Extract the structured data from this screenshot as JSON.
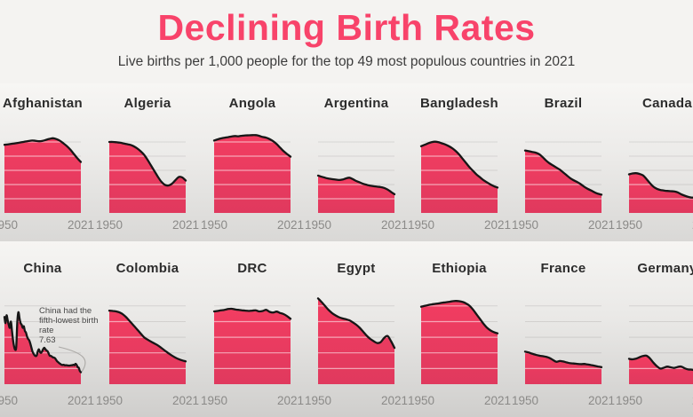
{
  "header": {
    "title": "Declining Birth Rates",
    "subtitle": "Live births per 1,000 people for the top 49 most populous countries in 2021"
  },
  "axis": {
    "start_label": "1950",
    "end_label": "2021"
  },
  "annotation": {
    "lines": [
      "China had the",
      "fifth-lowest birth",
      "rate"
    ],
    "value": "7.63",
    "target_country": "China"
  },
  "colors": {
    "title_pink": "#f8436a",
    "area_fill_top": "#f23d61",
    "area_fill_bottom": "#e0395e",
    "line": "#161616",
    "grid_over_area": "rgba(255,255,255,0.55)",
    "grid_background": "rgba(110,108,105,0.18)",
    "country_label": "#2c2c2c",
    "axis_label": "#8b8a88",
    "subtitle_text": "#3c3c3c"
  },
  "chart_data": {
    "type": "area",
    "title": "Declining Birth Rates",
    "unit": "live births per 1,000 people",
    "x_range": [
      1950,
      2021
    ],
    "ylim": [
      0,
      55
    ],
    "gridline_values": [
      10,
      20,
      30,
      40,
      50
    ],
    "grid": true,
    "legend_position": "none",
    "series": [
      {
        "name": "Afghanistan",
        "values": [
          48,
          48.3,
          48.7,
          49,
          49.4,
          49.8,
          50.3,
          50.7,
          51,
          50.8,
          50.5,
          50.8,
          51.5,
          52.2,
          52.6,
          52,
          50.8,
          49,
          47,
          44.5,
          41.5,
          38.5,
          35.9
        ]
      },
      {
        "name": "Algeria",
        "values": [
          50,
          50,
          49.8,
          49.5,
          49,
          48.5,
          48,
          47,
          45.5,
          43.5,
          41,
          37.5,
          33.5,
          29.5,
          25.5,
          22,
          19.8,
          19.3,
          20.5,
          23,
          25.3,
          25,
          22.8
        ]
      },
      {
        "name": "Angola",
        "values": [
          51,
          51.8,
          52.5,
          53,
          53.4,
          53.8,
          54.2,
          54,
          54.4,
          54.6,
          54.7,
          54.8,
          54.8,
          54.3,
          53.5,
          53,
          52,
          50.5,
          48.5,
          46,
          43.5,
          41.5,
          39.6
        ]
      },
      {
        "name": "Argentina",
        "values": [
          26.3,
          25.5,
          24.8,
          24.2,
          23.8,
          23.5,
          23.2,
          23.5,
          24.3,
          24.8,
          23.8,
          22.5,
          21.5,
          20.5,
          19.8,
          19.2,
          18.8,
          18.5,
          18.2,
          17.6,
          16.5,
          14.8,
          13.2
        ]
      },
      {
        "name": "Bangladesh",
        "values": [
          47,
          48,
          49,
          49.8,
          50.2,
          49.8,
          49,
          48.2,
          47,
          45.5,
          43.5,
          41,
          38,
          35,
          32,
          29.5,
          27,
          25,
          23,
          21.5,
          20,
          18.8,
          17.9
        ]
      },
      {
        "name": "Brazil",
        "values": [
          44,
          43.5,
          43,
          42.5,
          41.5,
          39.5,
          37,
          35,
          33.5,
          32,
          30.5,
          28.5,
          26.5,
          24.5,
          23,
          21.8,
          20.3,
          18.5,
          17,
          15.8,
          14.5,
          13.5,
          12.9
        ]
      },
      {
        "name": "Canada",
        "values": [
          27.2,
          27.8,
          28,
          27.5,
          26.5,
          24,
          21,
          18.5,
          17,
          16.2,
          15.8,
          15.5,
          15.3,
          15.2,
          14.5,
          13.2,
          12.2,
          11.3,
          10.8,
          10.9,
          10.6,
          10.1,
          9.8
        ]
      },
      {
        "name": "China",
        "values": [
          43,
          39,
          44,
          41,
          38,
          36,
          40,
          34,
          28,
          24,
          22,
          24,
          40,
          46,
          42,
          39,
          38,
          36,
          37,
          34,
          33,
          30.5,
          29,
          28,
          26,
          23.5,
          21,
          19.5,
          18.5,
          18,
          18.3,
          20.9,
          22.3,
          20.5,
          20,
          21,
          22.4,
          23.3,
          22.4,
          21.6,
          21.1,
          19.7,
          18.2,
          18.1,
          17.7,
          17.1,
          17,
          16.6,
          15.6,
          14.6,
          14,
          13.4,
          12.9,
          12.4,
          12.3,
          12.4,
          12.1,
          12.1,
          12.1,
          11.9,
          11.9,
          11.9,
          12.1,
          12.1,
          12.4,
          12.1,
          13,
          12.4,
          10.9,
          10.5,
          8.5,
          7.63
        ]
      },
      {
        "name": "Colombia",
        "values": [
          47,
          46.8,
          46.5,
          45.8,
          44.5,
          42.5,
          40,
          37.5,
          35,
          32.5,
          30,
          28.5,
          27.2,
          26,
          24.8,
          23.2,
          21.5,
          19.8,
          18.3,
          17,
          16,
          15.2,
          14.6
        ]
      },
      {
        "name": "DRC",
        "values": [
          46.5,
          46.8,
          47.2,
          47.5,
          48,
          48.2,
          47.8,
          47.5,
          47.2,
          47,
          46.8,
          47,
          47.2,
          46.5,
          46.8,
          47.5,
          46.2,
          45.8,
          46.4,
          45.5,
          44.8,
          43.5,
          41.8
        ]
      },
      {
        "name": "Egypt",
        "values": [
          54.8,
          52.5,
          50,
          47.5,
          45.5,
          44,
          42.8,
          42,
          41.5,
          40.8,
          39.5,
          38,
          36,
          33.5,
          31,
          29,
          27.5,
          26.3,
          26.8,
          29.5,
          30.8,
          27.5,
          23.2
        ]
      },
      {
        "name": "Ethiopia",
        "values": [
          49.5,
          50,
          50.5,
          51,
          51.3,
          51.6,
          52,
          52.3,
          52.6,
          53,
          53.2,
          53,
          52.5,
          51.5,
          50,
          47.5,
          44.5,
          41.5,
          38.5,
          36,
          34.3,
          33.2,
          32.5
        ]
      },
      {
        "name": "France",
        "values": [
          20.8,
          20.3,
          19.5,
          18.8,
          18.3,
          17.9,
          17.5,
          16.8,
          15.5,
          14.3,
          14.8,
          14.5,
          13.9,
          13.4,
          13.2,
          13,
          12.8,
          12.9,
          12.6,
          12.2,
          11.8,
          11.3,
          10.9
        ]
      },
      {
        "name": "Germany",
        "values": [
          16.2,
          15.9,
          16.3,
          17.2,
          18,
          18.2,
          16.5,
          13.8,
          11.5,
          10,
          10.5,
          11.2,
          10.8,
          10.4,
          11,
          11.3,
          10.2,
          9.4,
          9.3,
          8.8,
          8.4,
          9,
          9.4
        ]
      }
    ]
  }
}
